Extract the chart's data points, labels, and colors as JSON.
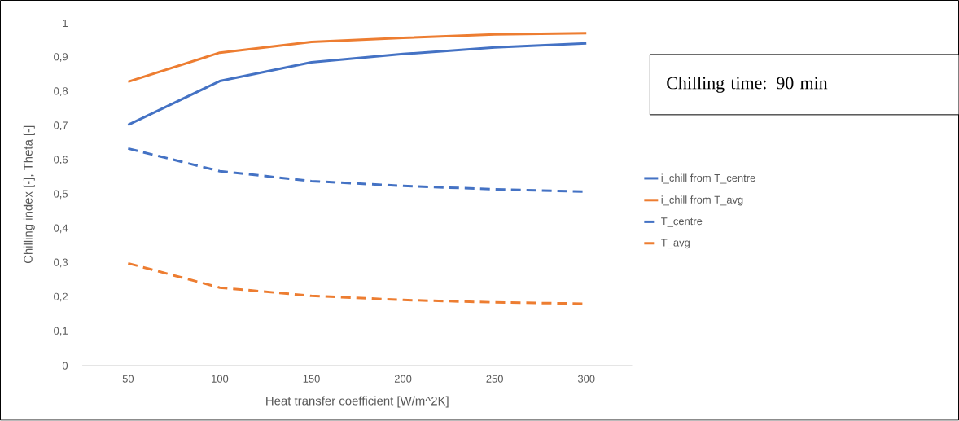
{
  "chart_data": {
    "type": "line",
    "xlabel": "Heat transfer coefficient [W/m^2K]",
    "ylabel": "Chilling index [-], Theta [-]",
    "categories": [
      "50",
      "100",
      "150",
      "200",
      "250",
      "300"
    ],
    "series": [
      {
        "name": "i_chill from T_centre",
        "color": "#4472c4",
        "line_style": "solid",
        "values": [
          0.703,
          0.831,
          0.886,
          0.91,
          0.929,
          0.941
        ]
      },
      {
        "name": "i_chill from T_avg",
        "color": "#ed7d31",
        "line_style": "solid",
        "values": [
          0.829,
          0.914,
          0.945,
          0.957,
          0.967,
          0.971
        ]
      },
      {
        "name": "T_centre",
        "color": "#4472c4",
        "line_style": "dashed",
        "values": [
          0.634,
          0.568,
          0.539,
          0.525,
          0.515,
          0.508
        ]
      },
      {
        "name": "T_avg",
        "color": "#ed7d31",
        "line_style": "dashed",
        "values": [
          0.299,
          0.228,
          0.204,
          0.192,
          0.185,
          0.181
        ]
      }
    ],
    "ylim": [
      0,
      1
    ],
    "yticks": [
      0,
      {
        "value": 0.1,
        "label": "0,1"
      },
      {
        "value": 0.2,
        "label": "0,2"
      },
      {
        "value": 0.3,
        "label": "0,3"
      },
      {
        "value": 0.4,
        "label": "0,4"
      },
      {
        "value": 0.5,
        "label": "0,5"
      },
      {
        "value": 0.6,
        "label": "0,6"
      },
      {
        "value": 0.7,
        "label": "0,7"
      },
      {
        "value": 0.8,
        "label": "0,8"
      },
      {
        "value": 0.9,
        "label": "0,9"
      },
      1
    ],
    "legend": "right",
    "marker": "none",
    "annotations": [
      "Chilling time: 90 min"
    ]
  }
}
